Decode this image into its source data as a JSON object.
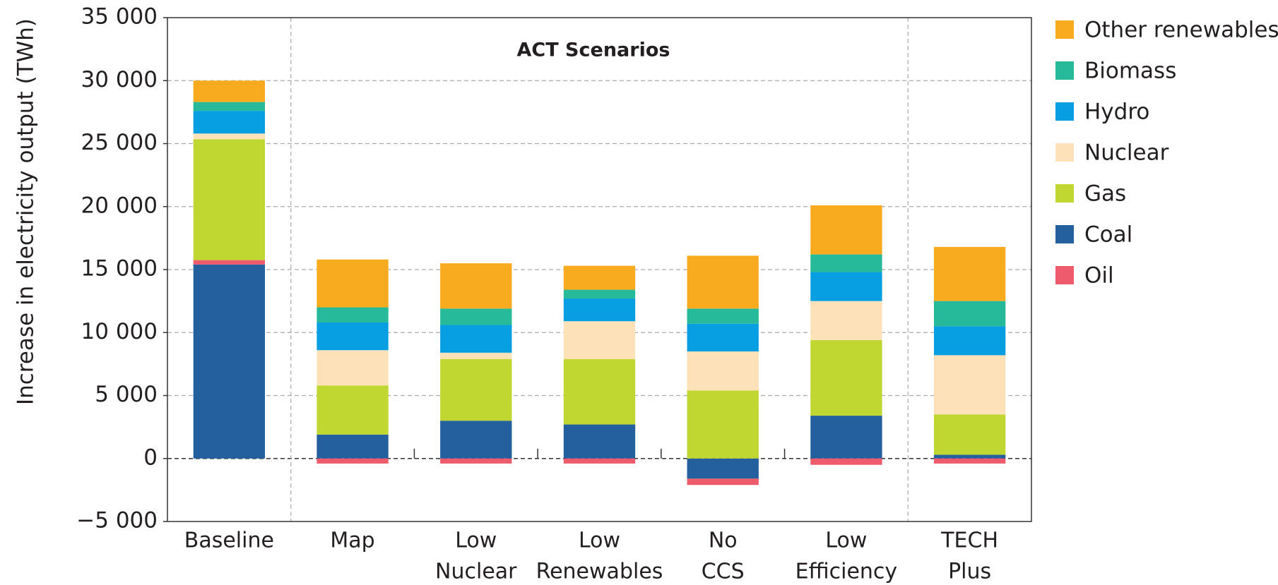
{
  "chart_data": {
    "type": "stacked_bar",
    "y_label": "Increase in electricity output (TWh)",
    "annotation": "ACT Scenarios",
    "categories": [
      [
        "Baseline"
      ],
      [
        "Map"
      ],
      [
        "Low",
        "Nuclear"
      ],
      [
        "Low",
        "Renewables"
      ],
      [
        "No",
        "CCS"
      ],
      [
        "Low",
        "Efficiency"
      ],
      [
        "TECH",
        "Plus"
      ]
    ],
    "series": [
      {
        "name": "Other renewables",
        "color": "#f9ab1f",
        "values": [
          1700,
          3800,
          3600,
          1900,
          4200,
          3900,
          4300
        ]
      },
      {
        "name": "Biomass",
        "color": "#26b99a",
        "values": [
          700,
          1200,
          1300,
          700,
          1200,
          1400,
          2000
        ]
      },
      {
        "name": "Hydro",
        "color": "#079fe2",
        "values": [
          1800,
          2200,
          2200,
          1800,
          2200,
          2300,
          2300
        ]
      },
      {
        "name": "Nuclear",
        "color": "#fce1b9",
        "values": [
          450,
          2800,
          500,
          3000,
          3100,
          3100,
          4700
        ]
      },
      {
        "name": "Gas",
        "color": "#c0d631",
        "values": [
          9600,
          3900,
          4900,
          5200,
          5400,
          6000,
          3200
        ]
      },
      {
        "name": "Coal",
        "color": "#24609d",
        "values": [
          15400,
          1900,
          3000,
          2700,
          -1600,
          3400,
          300
        ]
      },
      {
        "name": "Oil",
        "color": "#ee5b6c",
        "values": [
          350,
          -400,
          -400,
          -400,
          -500,
          -500,
          -400
        ]
      }
    ],
    "ylim": [
      -5000,
      35000
    ],
    "yticks": [
      {
        "value": -5000,
        "label": "−5 000"
      },
      0,
      {
        "value": 5000,
        "label": "5 000"
      },
      {
        "value": 10000,
        "label": "10 000"
      },
      {
        "value": 15000,
        "label": "15 000"
      },
      {
        "value": 20000,
        "label": "20 000"
      },
      {
        "value": 25000,
        "label": "25 000"
      },
      {
        "value": 30000,
        "label": "30 000"
      },
      {
        "value": 35000,
        "label": "35 000"
      }
    ],
    "grid": true,
    "legend": "right"
  }
}
